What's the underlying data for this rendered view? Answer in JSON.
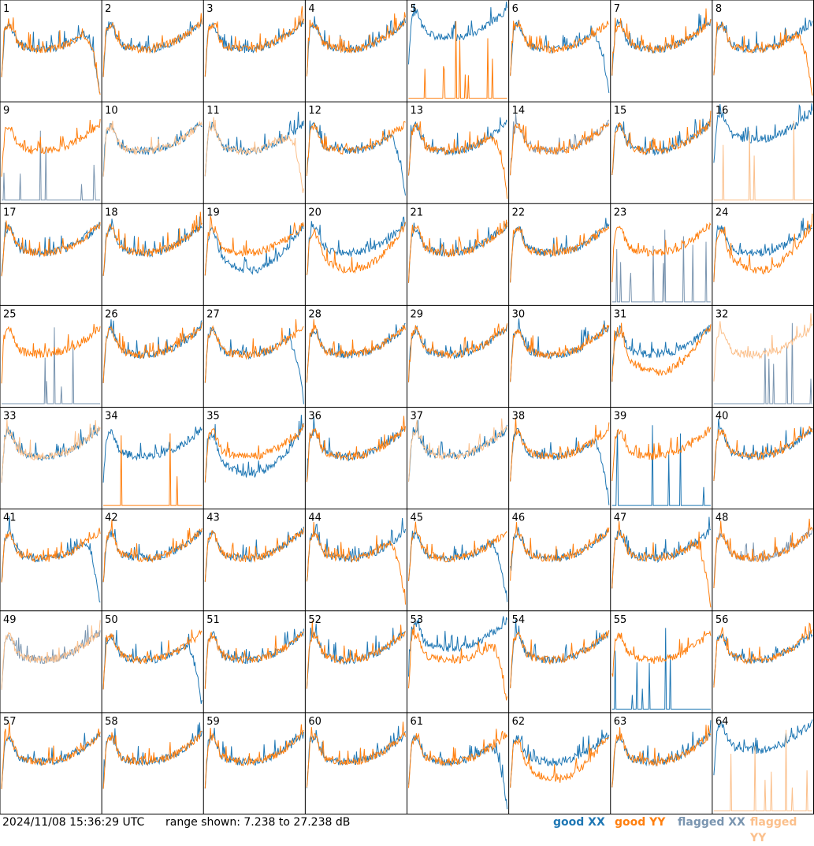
{
  "footer": {
    "timestamp": "2024/11/08 15:36:29 UTC",
    "range_text": "range shown: 7.238 to 27.238 dB"
  },
  "legend": [
    {
      "key": "good_xx",
      "label": "good XX",
      "color": "#1f77b4"
    },
    {
      "key": "good_yy",
      "label": "good YY",
      "color": "#ff7f0e"
    },
    {
      "key": "flagged_xx",
      "label": "flagged XX",
      "color": "#7a95b0"
    },
    {
      "key": "flagged_yy",
      "label": "flagged YY",
      "color": "#fbc08c"
    }
  ],
  "chart_data": {
    "type": "line",
    "layout": "8x8 small multiples of spectra per tile",
    "ylim": [
      7.238,
      27.238
    ],
    "y_unit": "dB",
    "tiles": [
      {
        "label": "1",
        "xx": {
          "status": "good",
          "profile": "rolloff"
        },
        "yy": {
          "status": "good",
          "profile": "rolloff"
        }
      },
      {
        "label": "2",
        "xx": {
          "status": "good",
          "profile": "normal"
        },
        "yy": {
          "status": "good",
          "profile": "normal"
        }
      },
      {
        "label": "3",
        "xx": {
          "status": "good",
          "profile": "normal"
        },
        "yy": {
          "status": "good",
          "profile": "normal"
        }
      },
      {
        "label": "4",
        "xx": {
          "status": "good",
          "profile": "normal"
        },
        "yy": {
          "status": "good",
          "profile": "normal"
        }
      },
      {
        "label": "5",
        "xx": {
          "status": "good",
          "profile": "high"
        },
        "yy": {
          "status": "good",
          "profile": "spikes"
        }
      },
      {
        "label": "6",
        "xx": {
          "status": "good",
          "profile": "rolloff"
        },
        "yy": {
          "status": "good",
          "profile": "normal"
        }
      },
      {
        "label": "7",
        "xx": {
          "status": "good",
          "profile": "normal"
        },
        "yy": {
          "status": "good",
          "profile": "normal"
        }
      },
      {
        "label": "8",
        "xx": {
          "status": "good",
          "profile": "normal"
        },
        "yy": {
          "status": "good",
          "profile": "rolloff"
        }
      },
      {
        "label": "9",
        "xx": {
          "status": "flagged",
          "profile": "spikes"
        },
        "yy": {
          "status": "good",
          "profile": "normal"
        }
      },
      {
        "label": "10",
        "xx": {
          "status": "good",
          "profile": "normal"
        },
        "yy": {
          "status": "flagged",
          "profile": "normal"
        }
      },
      {
        "label": "11",
        "xx": {
          "status": "good",
          "profile": "normal"
        },
        "yy": {
          "status": "flagged",
          "profile": "rolloff"
        }
      },
      {
        "label": "12",
        "xx": {
          "status": "good",
          "profile": "rolloff"
        },
        "yy": {
          "status": "good",
          "profile": "normal"
        }
      },
      {
        "label": "13",
        "xx": {
          "status": "good",
          "profile": "normal"
        },
        "yy": {
          "status": "good",
          "profile": "rolloff"
        }
      },
      {
        "label": "14",
        "xx": {
          "status": "flagged",
          "profile": "normal"
        },
        "yy": {
          "status": "good",
          "profile": "normal"
        }
      },
      {
        "label": "15",
        "xx": {
          "status": "good",
          "profile": "normal"
        },
        "yy": {
          "status": "good",
          "profile": "normal"
        }
      },
      {
        "label": "16",
        "xx": {
          "status": "good",
          "profile": "high"
        },
        "yy": {
          "status": "flagged",
          "profile": "spikes"
        }
      },
      {
        "label": "17",
        "xx": {
          "status": "good",
          "profile": "normal"
        },
        "yy": {
          "status": "good",
          "profile": "normal"
        }
      },
      {
        "label": "18",
        "xx": {
          "status": "good",
          "profile": "normal"
        },
        "yy": {
          "status": "good",
          "profile": "normal"
        }
      },
      {
        "label": "19",
        "xx": {
          "status": "good",
          "profile": "low"
        },
        "yy": {
          "status": "good",
          "profile": "normal"
        }
      },
      {
        "label": "20",
        "xx": {
          "status": "good",
          "profile": "normal"
        },
        "yy": {
          "status": "good",
          "profile": "low"
        }
      },
      {
        "label": "21",
        "xx": {
          "status": "good",
          "profile": "normal"
        },
        "yy": {
          "status": "good",
          "profile": "normal"
        }
      },
      {
        "label": "22",
        "xx": {
          "status": "good",
          "profile": "normal"
        },
        "yy": {
          "status": "good",
          "profile": "normal"
        }
      },
      {
        "label": "23",
        "xx": {
          "status": "flagged",
          "profile": "spikes"
        },
        "yy": {
          "status": "good",
          "profile": "normal"
        }
      },
      {
        "label": "24",
        "xx": {
          "status": "good",
          "profile": "normal"
        },
        "yy": {
          "status": "good",
          "profile": "low"
        }
      },
      {
        "label": "25",
        "xx": {
          "status": "flagged",
          "profile": "spikes"
        },
        "yy": {
          "status": "good",
          "profile": "normal"
        }
      },
      {
        "label": "26",
        "xx": {
          "status": "good",
          "profile": "normal"
        },
        "yy": {
          "status": "good",
          "profile": "normal"
        }
      },
      {
        "label": "27",
        "xx": {
          "status": "good",
          "profile": "rolloff"
        },
        "yy": {
          "status": "good",
          "profile": "normal"
        }
      },
      {
        "label": "28",
        "xx": {
          "status": "good",
          "profile": "normal"
        },
        "yy": {
          "status": "good",
          "profile": "normal"
        }
      },
      {
        "label": "29",
        "xx": {
          "status": "good",
          "profile": "normal"
        },
        "yy": {
          "status": "good",
          "profile": "normal"
        }
      },
      {
        "label": "30",
        "xx": {
          "status": "good",
          "profile": "normal"
        },
        "yy": {
          "status": "good",
          "profile": "normal"
        }
      },
      {
        "label": "31",
        "xx": {
          "status": "good",
          "profile": "normal"
        },
        "yy": {
          "status": "good",
          "profile": "low"
        }
      },
      {
        "label": "32",
        "xx": {
          "status": "flagged",
          "profile": "spikes"
        },
        "yy": {
          "status": "flagged",
          "profile": "normal"
        }
      },
      {
        "label": "33",
        "xx": {
          "status": "good",
          "profile": "normal"
        },
        "yy": {
          "status": "flagged",
          "profile": "normal"
        }
      },
      {
        "label": "34",
        "xx": {
          "status": "good",
          "profile": "normal"
        },
        "yy": {
          "status": "good",
          "profile": "spikes"
        }
      },
      {
        "label": "35",
        "xx": {
          "status": "good",
          "profile": "low"
        },
        "yy": {
          "status": "good",
          "profile": "normal"
        }
      },
      {
        "label": "36",
        "xx": {
          "status": "good",
          "profile": "normal"
        },
        "yy": {
          "status": "good",
          "profile": "normal"
        }
      },
      {
        "label": "37",
        "xx": {
          "status": "good",
          "profile": "normal"
        },
        "yy": {
          "status": "flagged",
          "profile": "normal"
        }
      },
      {
        "label": "38",
        "xx": {
          "status": "good",
          "profile": "rolloff"
        },
        "yy": {
          "status": "good",
          "profile": "normal"
        }
      },
      {
        "label": "39",
        "xx": {
          "status": "good",
          "profile": "spikes"
        },
        "yy": {
          "status": "good",
          "profile": "normal"
        }
      },
      {
        "label": "40",
        "xx": {
          "status": "good",
          "profile": "normal"
        },
        "yy": {
          "status": "good",
          "profile": "normal"
        }
      },
      {
        "label": "41",
        "xx": {
          "status": "good",
          "profile": "rolloff"
        },
        "yy": {
          "status": "good",
          "profile": "normal"
        }
      },
      {
        "label": "42",
        "xx": {
          "status": "good",
          "profile": "normal"
        },
        "yy": {
          "status": "good",
          "profile": "normal"
        }
      },
      {
        "label": "43",
        "xx": {
          "status": "good",
          "profile": "normal"
        },
        "yy": {
          "status": "good",
          "profile": "normal"
        }
      },
      {
        "label": "44",
        "xx": {
          "status": "good",
          "profile": "normal"
        },
        "yy": {
          "status": "good",
          "profile": "rolloff"
        }
      },
      {
        "label": "45",
        "xx": {
          "status": "good",
          "profile": "rolloff"
        },
        "yy": {
          "status": "good",
          "profile": "normal"
        }
      },
      {
        "label": "46",
        "xx": {
          "status": "good",
          "profile": "normal"
        },
        "yy": {
          "status": "good",
          "profile": "normal"
        }
      },
      {
        "label": "47",
        "xx": {
          "status": "good",
          "profile": "normal"
        },
        "yy": {
          "status": "good",
          "profile": "rolloff"
        }
      },
      {
        "label": "48",
        "xx": {
          "status": "flagged",
          "profile": "normal"
        },
        "yy": {
          "status": "good",
          "profile": "normal"
        }
      },
      {
        "label": "49",
        "xx": {
          "status": "flagged",
          "profile": "normal"
        },
        "yy": {
          "status": "flagged",
          "profile": "normal"
        }
      },
      {
        "label": "50",
        "xx": {
          "status": "good",
          "profile": "rolloff"
        },
        "yy": {
          "status": "good",
          "profile": "normal"
        }
      },
      {
        "label": "51",
        "xx": {
          "status": "good",
          "profile": "normal"
        },
        "yy": {
          "status": "good",
          "profile": "normal"
        }
      },
      {
        "label": "52",
        "xx": {
          "status": "good",
          "profile": "normal"
        },
        "yy": {
          "status": "good",
          "profile": "normal"
        }
      },
      {
        "label": "53",
        "xx": {
          "status": "good",
          "profile": "high"
        },
        "yy": {
          "status": "good",
          "profile": "rolloff"
        }
      },
      {
        "label": "54",
        "xx": {
          "status": "good",
          "profile": "normal"
        },
        "yy": {
          "status": "good",
          "profile": "normal"
        }
      },
      {
        "label": "55",
        "xx": {
          "status": "good",
          "profile": "spikes"
        },
        "yy": {
          "status": "good",
          "profile": "normal"
        }
      },
      {
        "label": "56",
        "xx": {
          "status": "good",
          "profile": "normal"
        },
        "yy": {
          "status": "good",
          "profile": "normal"
        }
      },
      {
        "label": "57",
        "xx": {
          "status": "good",
          "profile": "normal"
        },
        "yy": {
          "status": "good",
          "profile": "normal"
        }
      },
      {
        "label": "58",
        "xx": {
          "status": "good",
          "profile": "normal"
        },
        "yy": {
          "status": "good",
          "profile": "normal"
        }
      },
      {
        "label": "59",
        "xx": {
          "status": "good",
          "profile": "normal"
        },
        "yy": {
          "status": "good",
          "profile": "normal"
        }
      },
      {
        "label": "60",
        "xx": {
          "status": "good",
          "profile": "normal"
        },
        "yy": {
          "status": "good",
          "profile": "normal"
        }
      },
      {
        "label": "61",
        "xx": {
          "status": "good",
          "profile": "rolloff"
        },
        "yy": {
          "status": "good",
          "profile": "normal"
        }
      },
      {
        "label": "62",
        "xx": {
          "status": "good",
          "profile": "normal"
        },
        "yy": {
          "status": "good",
          "profile": "low"
        }
      },
      {
        "label": "63",
        "xx": {
          "status": "good",
          "profile": "normal"
        },
        "yy": {
          "status": "good",
          "profile": "normal"
        }
      },
      {
        "label": "64",
        "xx": {
          "status": "good",
          "profile": "high"
        },
        "yy": {
          "status": "flagged",
          "profile": "spikes"
        }
      }
    ]
  }
}
